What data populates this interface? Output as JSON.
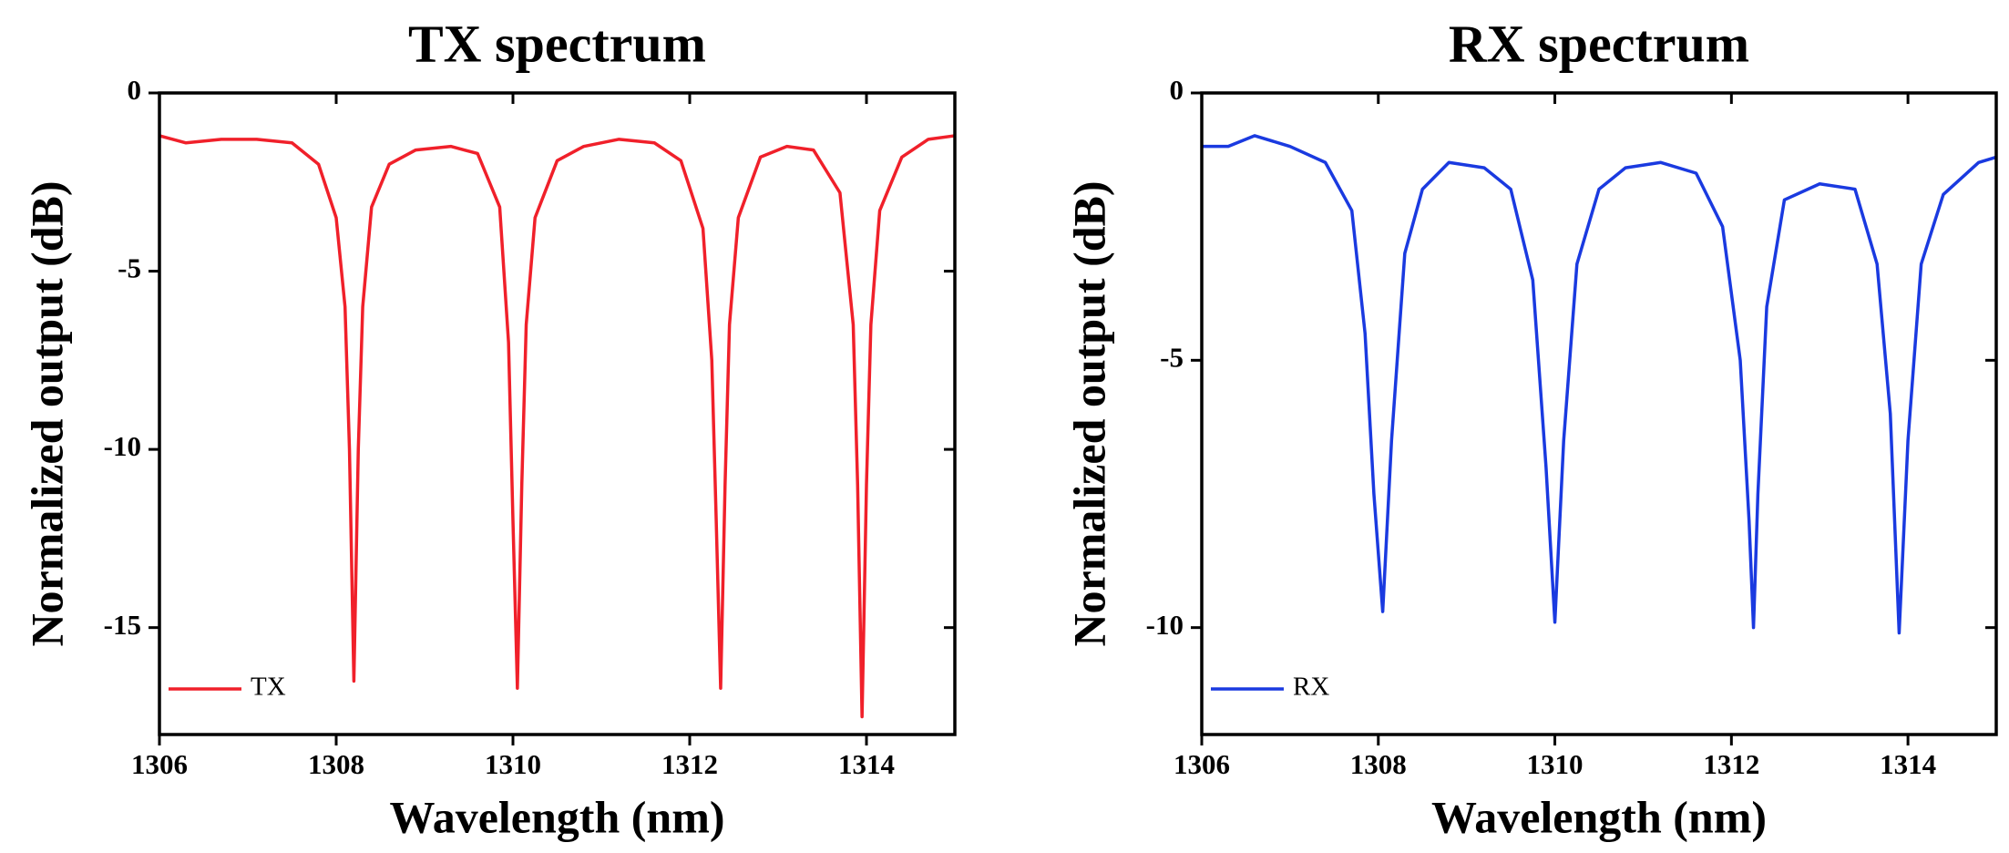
{
  "chart_data": [
    {
      "type": "line",
      "title": "TX spectrum",
      "xlabel": "Wavelength (nm)",
      "ylabel": "Normalized output (dB)",
      "x": [
        1306,
        1306.3,
        1306.7,
        1307.1,
        1307.5,
        1307.8,
        1308.0,
        1308.1,
        1308.15,
        1308.2,
        1308.25,
        1308.3,
        1308.4,
        1308.6,
        1308.9,
        1309.3,
        1309.6,
        1309.85,
        1309.95,
        1310.0,
        1310.05,
        1310.1,
        1310.15,
        1310.25,
        1310.5,
        1310.8,
        1311.2,
        1311.6,
        1311.9,
        1312.15,
        1312.25,
        1312.3,
        1312.35,
        1312.4,
        1312.45,
        1312.55,
        1312.8,
        1313.1,
        1313.4,
        1313.7,
        1313.85,
        1313.9,
        1313.95,
        1314.0,
        1314.05,
        1314.15,
        1314.4,
        1314.7,
        1315
      ],
      "series": [
        {
          "name": "TX",
          "color": "#f0202a",
          "values": [
            -1.2,
            -1.4,
            -1.3,
            -1.3,
            -1.4,
            -2.0,
            -3.5,
            -6,
            -10,
            -16.5,
            -10,
            -6,
            -3.2,
            -2.0,
            -1.6,
            -1.5,
            -1.7,
            -3.2,
            -7,
            -12,
            -16.7,
            -11,
            -6.5,
            -3.5,
            -1.9,
            -1.5,
            -1.3,
            -1.4,
            -1.9,
            -3.8,
            -7.5,
            -12,
            -16.7,
            -11,
            -6.5,
            -3.5,
            -1.8,
            -1.5,
            -1.6,
            -2.8,
            -6.5,
            -11,
            -17.5,
            -11,
            -6.5,
            -3.3,
            -1.8,
            -1.3,
            -1.2
          ]
        }
      ],
      "xlim": [
        1306,
        1315
      ],
      "xticks": [
        1306,
        1308,
        1310,
        1312,
        1314
      ],
      "ylim": [
        -18,
        0
      ],
      "yticks": [
        0,
        -5,
        -10,
        -15
      ],
      "legend": "lower left"
    },
    {
      "type": "line",
      "title": "RX spectrum",
      "xlabel": "Wavelength (nm)",
      "ylabel": "Normalized output (dB)",
      "x": [
        1306,
        1306.3,
        1306.6,
        1307.0,
        1307.4,
        1307.7,
        1307.85,
        1307.95,
        1308.05,
        1308.15,
        1308.3,
        1308.5,
        1308.8,
        1309.2,
        1309.5,
        1309.75,
        1309.9,
        1310.0,
        1310.1,
        1310.25,
        1310.5,
        1310.8,
        1311.2,
        1311.6,
        1311.9,
        1312.1,
        1312.2,
        1312.25,
        1312.3,
        1312.4,
        1312.6,
        1313.0,
        1313.4,
        1313.65,
        1313.8,
        1313.9,
        1314.0,
        1314.15,
        1314.4,
        1314.8,
        1315
      ],
      "series": [
        {
          "name": "RX",
          "color": "#1a3ae0",
          "values": [
            -1.0,
            -1.0,
            -0.8,
            -1.0,
            -1.3,
            -2.2,
            -4.5,
            -7.5,
            -9.7,
            -6.5,
            -3.0,
            -1.8,
            -1.3,
            -1.4,
            -1.8,
            -3.5,
            -7,
            -9.9,
            -6.5,
            -3.2,
            -1.8,
            -1.4,
            -1.3,
            -1.5,
            -2.5,
            -5.0,
            -8,
            -10.0,
            -7.5,
            -4.0,
            -2.0,
            -1.7,
            -1.8,
            -3.2,
            -6,
            -10.1,
            -6.5,
            -3.2,
            -1.9,
            -1.3,
            -1.2
          ]
        }
      ],
      "xlim": [
        1306,
        1315
      ],
      "xticks": [
        1306,
        1308,
        1310,
        1312,
        1314
      ],
      "ylim": [
        -12,
        0
      ],
      "yticks": [
        0,
        -5,
        -10
      ],
      "legend": "lower left"
    }
  ]
}
